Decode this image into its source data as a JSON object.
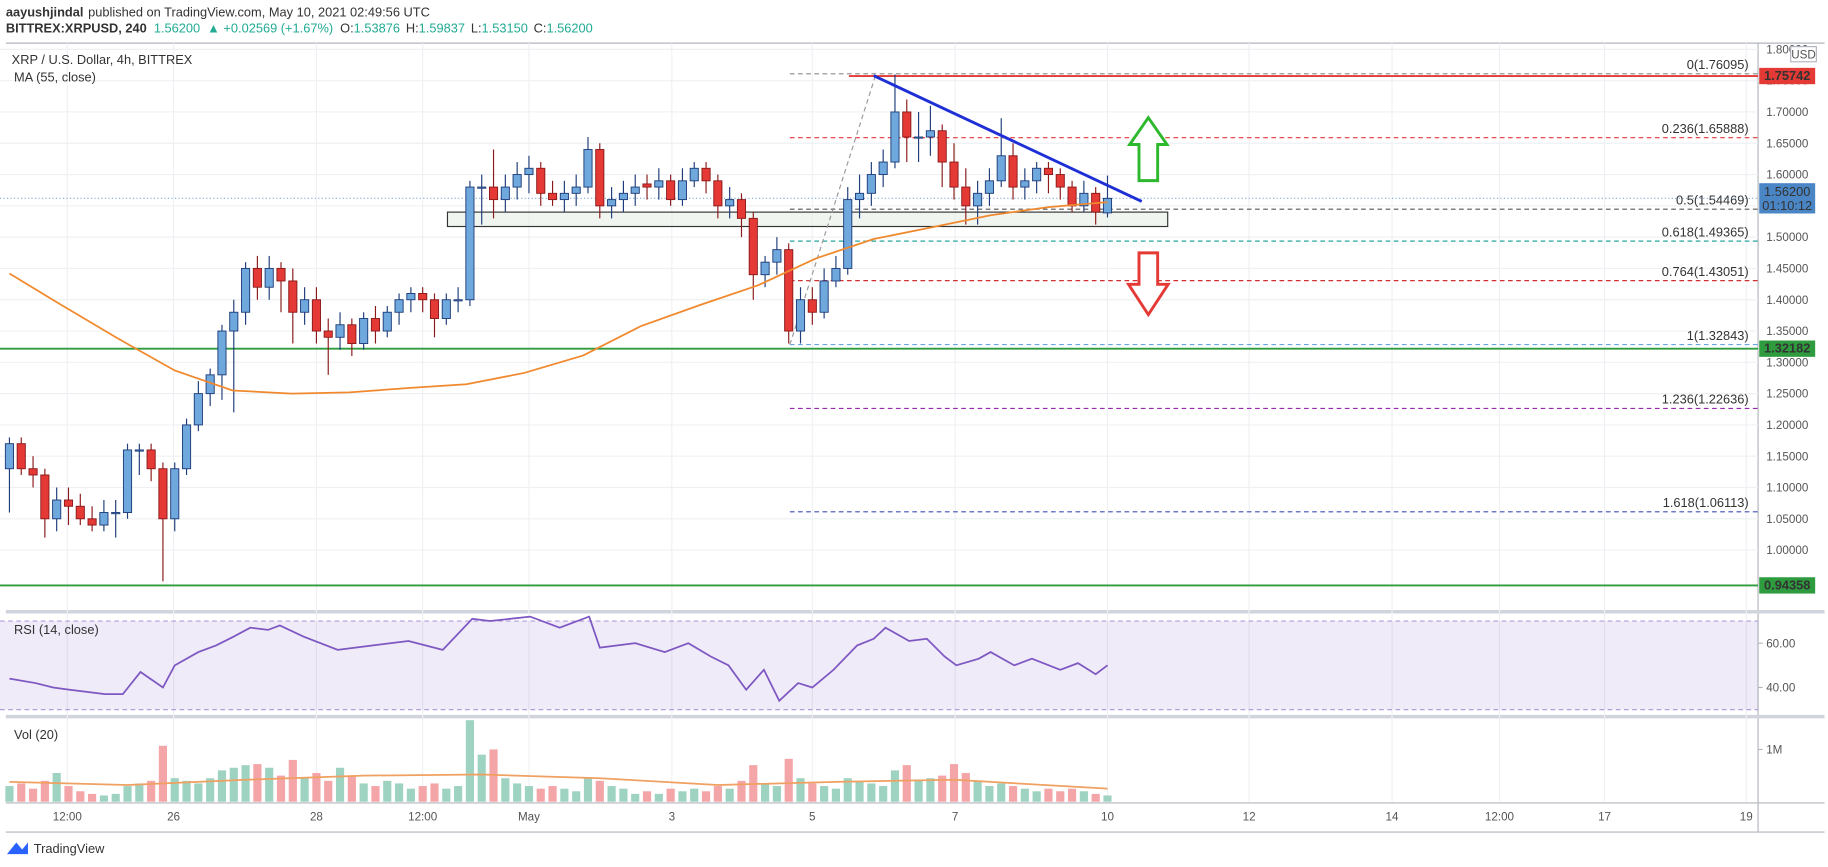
{
  "header": {
    "author": "aayushjindal",
    "published": "published on TradingView.com, May 10, 2021 02:49:56 UTC",
    "symbol": "BITTREX:XRPUSD, 240",
    "last": "1.56200",
    "change": "▲ +0.02569 (+1.67%)",
    "o_label": "O:",
    "o": "1.53876",
    "h_label": "H:",
    "h": "1.59837",
    "l_label": "L:",
    "l": "1.53150",
    "c_label": "C:",
    "c": "1.56200"
  },
  "footer": {
    "brand": "TradingView"
  },
  "chart_data": [
    {
      "type": "candlestick",
      "title": "XRP / U.S. Dollar, 4h, BITTREX",
      "currency": "USD",
      "grid": true,
      "up_color": "#6fa8dc",
      "up_border": "#1f3d7a",
      "down_color": "#e53935",
      "down_border": "#8b1a1a",
      "ohlc": [
        [
          1.13,
          1.18,
          1.06,
          1.17
        ],
        [
          1.17,
          1.18,
          1.12,
          1.13
        ],
        [
          1.13,
          1.15,
          1.1,
          1.12
        ],
        [
          1.12,
          1.13,
          1.02,
          1.05
        ],
        [
          1.05,
          1.1,
          1.03,
          1.08
        ],
        [
          1.08,
          1.1,
          1.04,
          1.07
        ],
        [
          1.07,
          1.09,
          1.04,
          1.05
        ],
        [
          1.05,
          1.07,
          1.03,
          1.04
        ],
        [
          1.04,
          1.08,
          1.03,
          1.06
        ],
        [
          1.06,
          1.08,
          1.02,
          1.06
        ],
        [
          1.06,
          1.17,
          1.05,
          1.16
        ],
        [
          1.16,
          1.17,
          1.12,
          1.16
        ],
        [
          1.16,
          1.17,
          1.11,
          1.13
        ],
        [
          1.13,
          1.14,
          0.95,
          1.05
        ],
        [
          1.05,
          1.14,
          1.03,
          1.13
        ],
        [
          1.13,
          1.21,
          1.12,
          1.2
        ],
        [
          1.2,
          1.27,
          1.19,
          1.25
        ],
        [
          1.25,
          1.29,
          1.23,
          1.28
        ],
        [
          1.28,
          1.36,
          1.24,
          1.35
        ],
        [
          1.35,
          1.4,
          1.22,
          1.38
        ],
        [
          1.38,
          1.46,
          1.36,
          1.45
        ],
        [
          1.45,
          1.47,
          1.4,
          1.42
        ],
        [
          1.42,
          1.47,
          1.4,
          1.45
        ],
        [
          1.45,
          1.46,
          1.38,
          1.43
        ],
        [
          1.43,
          1.45,
          1.33,
          1.38
        ],
        [
          1.38,
          1.42,
          1.36,
          1.4
        ],
        [
          1.4,
          1.42,
          1.33,
          1.35
        ],
        [
          1.35,
          1.37,
          1.28,
          1.34
        ],
        [
          1.34,
          1.38,
          1.32,
          1.36
        ],
        [
          1.36,
          1.37,
          1.31,
          1.33
        ],
        [
          1.33,
          1.38,
          1.32,
          1.37
        ],
        [
          1.37,
          1.39,
          1.33,
          1.35
        ],
        [
          1.35,
          1.39,
          1.34,
          1.38
        ],
        [
          1.38,
          1.41,
          1.36,
          1.4
        ],
        [
          1.4,
          1.42,
          1.38,
          1.41
        ],
        [
          1.41,
          1.42,
          1.38,
          1.4
        ],
        [
          1.4,
          1.41,
          1.34,
          1.37
        ],
        [
          1.37,
          1.41,
          1.36,
          1.4
        ],
        [
          1.4,
          1.42,
          1.38,
          1.4
        ],
        [
          1.4,
          1.59,
          1.39,
          1.58
        ],
        [
          1.58,
          1.6,
          1.52,
          1.58
        ],
        [
          1.58,
          1.64,
          1.53,
          1.56
        ],
        [
          1.56,
          1.6,
          1.54,
          1.58
        ],
        [
          1.58,
          1.62,
          1.56,
          1.6
        ],
        [
          1.6,
          1.63,
          1.57,
          1.61
        ],
        [
          1.61,
          1.62,
          1.55,
          1.57
        ],
        [
          1.57,
          1.59,
          1.55,
          1.56
        ],
        [
          1.56,
          1.59,
          1.54,
          1.57
        ],
        [
          1.57,
          1.6,
          1.55,
          1.58
        ],
        [
          1.58,
          1.66,
          1.57,
          1.64
        ],
        [
          1.64,
          1.65,
          1.53,
          1.55
        ],
        [
          1.55,
          1.58,
          1.53,
          1.56
        ],
        [
          1.56,
          1.59,
          1.54,
          1.57
        ],
        [
          1.57,
          1.6,
          1.55,
          1.58
        ],
        [
          1.585,
          1.6,
          1.56,
          1.58
        ],
        [
          1.58,
          1.61,
          1.56,
          1.59
        ],
        [
          1.59,
          1.6,
          1.55,
          1.56
        ],
        [
          1.56,
          1.61,
          1.55,
          1.59
        ],
        [
          1.59,
          1.62,
          1.58,
          1.61
        ],
        [
          1.61,
          1.62,
          1.57,
          1.59
        ],
        [
          1.59,
          1.6,
          1.53,
          1.55
        ],
        [
          1.55,
          1.58,
          1.53,
          1.56
        ],
        [
          1.56,
          1.57,
          1.5,
          1.53
        ],
        [
          1.53,
          1.54,
          1.4,
          1.44
        ],
        [
          1.44,
          1.47,
          1.42,
          1.46
        ],
        [
          1.46,
          1.5,
          1.44,
          1.48
        ],
        [
          1.48,
          1.49,
          1.33,
          1.35
        ],
        [
          1.35,
          1.42,
          1.33,
          1.4
        ],
        [
          1.4,
          1.42,
          1.36,
          1.38
        ],
        [
          1.38,
          1.45,
          1.37,
          1.43
        ],
        [
          1.43,
          1.47,
          1.42,
          1.45
        ],
        [
          1.45,
          1.58,
          1.44,
          1.56
        ],
        [
          1.56,
          1.6,
          1.53,
          1.57
        ],
        [
          1.57,
          1.62,
          1.55,
          1.6
        ],
        [
          1.6,
          1.64,
          1.58,
          1.62
        ],
        [
          1.62,
          1.76,
          1.61,
          1.7
        ],
        [
          1.7,
          1.72,
          1.62,
          1.66
        ],
        [
          1.66,
          1.7,
          1.62,
          1.66
        ],
        [
          1.66,
          1.71,
          1.63,
          1.67
        ],
        [
          1.67,
          1.68,
          1.58,
          1.62
        ],
        [
          1.62,
          1.65,
          1.56,
          1.58
        ],
        [
          1.58,
          1.61,
          1.52,
          1.55
        ],
        [
          1.55,
          1.59,
          1.52,
          1.57
        ],
        [
          1.57,
          1.61,
          1.55,
          1.59
        ],
        [
          1.59,
          1.69,
          1.58,
          1.63
        ],
        [
          1.63,
          1.65,
          1.56,
          1.58
        ],
        [
          1.58,
          1.61,
          1.56,
          1.59
        ],
        [
          1.59,
          1.62,
          1.57,
          1.61
        ],
        [
          1.61,
          1.62,
          1.57,
          1.6
        ],
        [
          1.6,
          1.61,
          1.56,
          1.58
        ],
        [
          1.58,
          1.59,
          1.54,
          1.55
        ],
        [
          1.55,
          1.59,
          1.54,
          1.57
        ],
        [
          1.57,
          1.58,
          1.52,
          1.54
        ],
        [
          1.53876,
          1.59837,
          1.5315,
          1.562
        ]
      ],
      "xlim": [
        -0.8,
        148.1
      ],
      "xticks": [
        {
          "value": 4.9,
          "label": "12:00"
        },
        {
          "value": 13.9,
          "label": "26"
        },
        {
          "value": 26,
          "label": "28"
        },
        {
          "value": 35,
          "label": "12:00"
        },
        {
          "value": 44,
          "label": "May"
        },
        {
          "value": 56.1,
          "label": "3"
        },
        {
          "value": 68,
          "label": "5"
        },
        {
          "value": 80.1,
          "label": "7"
        },
        {
          "value": 93,
          "label": "10"
        },
        {
          "value": 105,
          "label": "12"
        },
        {
          "value": 117.1,
          "label": "14"
        },
        {
          "value": 126.2,
          "label": "12:00"
        },
        {
          "value": 135.1,
          "label": "17"
        },
        {
          "value": 147.1,
          "label": "19"
        }
      ],
      "ylim": [
        0.907,
        1.81
      ],
      "yticks": [
        {
          "value": 1.0,
          "label": "1.00000"
        },
        {
          "value": 1.05,
          "label": "1.05000"
        },
        {
          "value": 1.1,
          "label": "1.10000"
        },
        {
          "value": 1.15,
          "label": "1.15000"
        },
        {
          "value": 1.2,
          "label": "1.20000"
        },
        {
          "value": 1.25,
          "label": "1.25000"
        },
        {
          "value": 1.3,
          "label": "1.30000"
        },
        {
          "value": 1.35,
          "label": "1.35000"
        },
        {
          "value": 1.4,
          "label": "1.40000"
        },
        {
          "value": 1.45,
          "label": "1.45000"
        },
        {
          "value": 1.5,
          "label": "1.50000"
        },
        {
          "value": 1.55,
          "label": "1.55000"
        },
        {
          "value": 1.6,
          "label": "1.60000"
        },
        {
          "value": 1.65,
          "label": "1.65000"
        },
        {
          "value": 1.7,
          "label": "1.70000"
        },
        {
          "value": 1.75,
          "label": "1.75000"
        },
        {
          "value": 1.8,
          "label": "1.80000"
        }
      ],
      "series": [
        {
          "name": "MA (55, close)",
          "color": "#f0892e",
          "x": [
            0,
            4.1,
            9.1,
            14,
            18.9,
            23.9,
            28.8,
            33.8,
            38.7,
            43.6,
            48.6,
            53.5,
            58.4,
            63.4,
            68.3,
            73.2,
            78.2,
            83.1,
            88,
            93
          ],
          "values": [
            1.442,
            1.395,
            1.339,
            1.287,
            1.255,
            1.25,
            1.252,
            1.259,
            1.265,
            1.283,
            1.311,
            1.358,
            1.391,
            1.423,
            1.466,
            1.497,
            1.516,
            1.535,
            1.548,
            1.556
          ]
        }
      ],
      "lines": [
        {
          "value": 1.75742,
          "color": "#e53935",
          "x_from": 71.1
        },
        {
          "value": 1.32182,
          "color": "#2e9b3e"
        },
        {
          "value": 0.94358,
          "color": "#2e9b3e"
        }
      ],
      "last_price": {
        "value": 1.562,
        "label": "1.56200",
        "countdown": "01:10:12",
        "color": "#4a86c5"
      },
      "fib": {
        "x": [
          66.1,
          73.4
        ],
        "levels": [
          {
            "value": 1.76095,
            "label": "0(1.76095)",
            "color": "#8a8a8a"
          },
          {
            "value": 1.65888,
            "label": "0.236(1.65888)",
            "color": "#e53935"
          },
          {
            "value": 1.54469,
            "label": "0.5(1.54469)",
            "color": "#555555"
          },
          {
            "value": 1.49365,
            "label": "0.618(1.49365)",
            "color": "#26a69a"
          },
          {
            "value": 1.43051,
            "label": "0.764(1.43051)",
            "color": "#d32f2f"
          },
          {
            "value": 1.32843,
            "label": "1(1.32843)",
            "color": "#64a8e0"
          },
          {
            "value": 1.22636,
            "label": "1.236(1.22636)",
            "color": "#9c27b0"
          },
          {
            "value": 1.06113,
            "label": "1.618(1.06113)",
            "color": "#3f51b5"
          }
        ]
      },
      "trendline": {
        "x": [
          73.2,
          95.9
        ],
        "values": [
          1.758,
          1.557
        ],
        "color": "#1e2fd6"
      },
      "zone": {
        "x": [
          37.1,
          98.1
        ],
        "values": [
          1.517,
          1.54
        ]
      }
    },
    {
      "type": "line",
      "title": "RSI (14, close)",
      "xlim": [
        -0.8,
        148.1
      ],
      "ylim": [
        28.4,
        72.6
      ],
      "yticks": [
        {
          "value": 60,
          "label": "60.00"
        },
        {
          "value": 40,
          "label": "40.00"
        }
      ],
      "band": [
        30,
        70
      ],
      "series": [
        {
          "color": "#7e57c2",
          "x": [
            0,
            2.2,
            3.7,
            5.1,
            8.1,
            9.6,
            11.1,
            13,
            14,
            16,
            17.5,
            19,
            20.4,
            21.9,
            22.9,
            24.9,
            27.8,
            30.8,
            33.8,
            36.7,
            39.2,
            40.7,
            44.1,
            46.6,
            49.1,
            50,
            53,
            55.5,
            57.5,
            59.4,
            60.9,
            62.4,
            63.9,
            65.2,
            66.8,
            68,
            69.8,
            71.8,
            73.2,
            74.2,
            76.2,
            77.7,
            79.2,
            80.2,
            82.1,
            83.1,
            85.1,
            86.6,
            89,
            90.5,
            92,
            93
          ],
          "values": [
            44,
            42,
            40,
            39,
            37,
            37,
            47,
            40,
            50,
            56,
            59,
            63,
            67,
            66,
            68,
            63,
            57,
            59,
            61,
            57,
            71,
            70,
            72,
            67,
            72,
            58,
            60,
            56,
            60,
            54,
            50,
            39,
            48,
            34,
            42,
            40,
            48,
            59,
            62,
            67,
            61,
            62,
            54,
            50,
            53,
            56,
            50,
            53,
            48,
            51,
            46,
            50
          ]
        }
      ]
    },
    {
      "type": "volume",
      "title": "Vol (20)",
      "xlim": [
        -0.8,
        148.1
      ],
      "ylim": [
        0,
        1.56
      ],
      "yticks": [
        {
          "value": 1,
          "label": "1M"
        }
      ],
      "up_color": "#9fd3c1",
      "down_color": "#f3a5a8",
      "values": [
        0.3,
        0.35,
        0.25,
        0.4,
        0.55,
        0.3,
        0.2,
        0.15,
        0.12,
        0.15,
        0.3,
        0.35,
        0.4,
        1.07,
        0.45,
        0.4,
        0.35,
        0.45,
        0.6,
        0.65,
        0.7,
        0.72,
        0.65,
        0.5,
        0.8,
        0.45,
        0.55,
        0.4,
        0.65,
        0.5,
        0.35,
        0.3,
        0.4,
        0.35,
        0.25,
        0.3,
        0.35,
        0.25,
        0.3,
        1.56,
        0.9,
        1.0,
        0.45,
        0.35,
        0.3,
        0.25,
        0.3,
        0.25,
        0.2,
        0.45,
        0.4,
        0.3,
        0.25,
        0.15,
        0.2,
        0.15,
        0.25,
        0.2,
        0.25,
        0.2,
        0.3,
        0.25,
        0.4,
        0.7,
        0.35,
        0.3,
        0.82,
        0.45,
        0.35,
        0.3,
        0.25,
        0.45,
        0.4,
        0.35,
        0.3,
        0.6,
        0.7,
        0.4,
        0.45,
        0.5,
        0.72,
        0.55,
        0.4,
        0.3,
        0.35,
        0.3,
        0.25,
        0.2,
        0.25,
        0.2,
        0.25,
        0.2,
        0.15,
        0.12
      ],
      "series": [
        {
          "color": "#f0a060",
          "x": [
            0,
            10,
            20,
            30,
            40,
            50,
            60,
            70,
            80,
            93
          ],
          "values": [
            0.38,
            0.32,
            0.42,
            0.5,
            0.52,
            0.45,
            0.32,
            0.38,
            0.42,
            0.25
          ]
        }
      ]
    }
  ]
}
